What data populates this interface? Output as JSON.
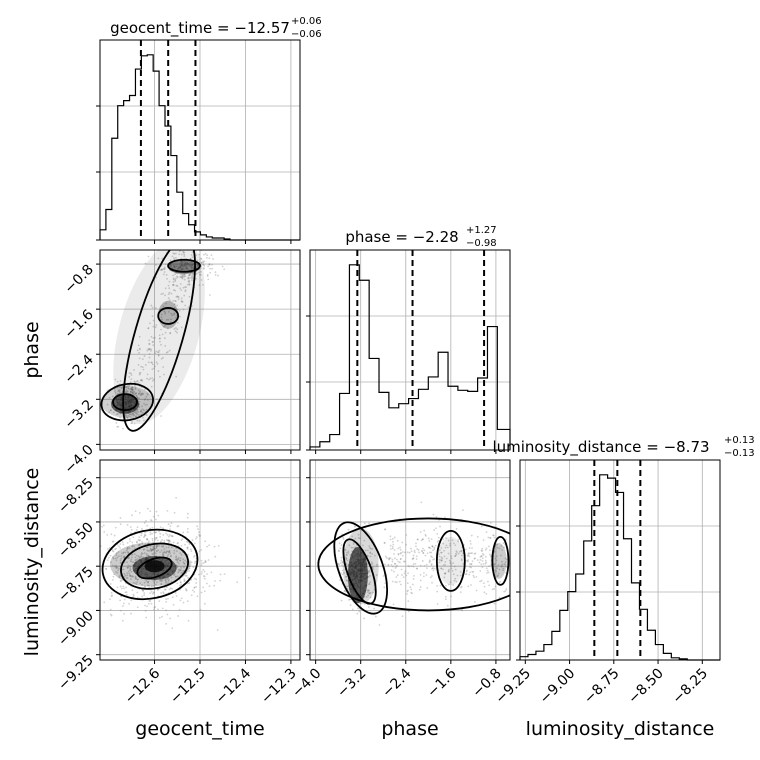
{
  "chart_data": {
    "type": "corner",
    "parameters": [
      "geocent_time",
      "phase",
      "luminosity_distance"
    ],
    "titles": [
      {
        "param": "geocent_time",
        "median": "−12.57",
        "plus": "+0.06",
        "minus": "−0.06"
      },
      {
        "param": "phase",
        "median": "−2.28",
        "plus": "+1.27",
        "minus": "−0.98"
      },
      {
        "param": "luminosity_distance",
        "median": "−8.73",
        "plus": "+0.13",
        "minus": "−0.13"
      }
    ],
    "title_equals": "=",
    "axes": {
      "geocent_time": {
        "range": [
          -12.72,
          -12.28
        ],
        "ticks": [
          -12.6,
          -12.5,
          -12.4,
          -12.3
        ],
        "tick_labels": [
          "−12.6",
          "−12.5",
          "−12.4",
          "−12.3"
        ]
      },
      "phase": {
        "range": [
          -4.1,
          -0.55
        ],
        "ticks": [
          -4.0,
          -3.2,
          -2.4,
          -1.6,
          -0.8
        ],
        "tick_labels": [
          "−4.0",
          "−3.2",
          "−2.4",
          "−1.6",
          "−0.8"
        ]
      },
      "luminosity_distance": {
        "range": [
          -9.28,
          -8.15
        ],
        "ticks": [
          -9.25,
          -9.0,
          -8.75,
          -8.5,
          -8.25
        ],
        "tick_labels": [
          "−9.25",
          "−9.00",
          "−8.75",
          "−8.50",
          "−8.25"
        ]
      }
    },
    "histograms": {
      "geocent_time": {
        "edges": [
          -12.72,
          -12.707,
          -12.694,
          -12.681,
          -12.668,
          -12.655,
          -12.642,
          -12.629,
          -12.616,
          -12.603,
          -12.59,
          -12.577,
          -12.564,
          -12.551,
          -12.538,
          -12.525,
          -12.512,
          -12.499,
          -12.486,
          -12.473,
          -12.46,
          -12.447,
          -12.434,
          -12.421,
          -12.408,
          -12.395,
          -12.382,
          -12.369,
          -12.356,
          -12.343,
          -12.33,
          -12.317,
          -12.304,
          -12.291,
          -12.28
        ],
        "counts": [
          10,
          30,
          100,
          132,
          137,
          142,
          168,
          181,
          182,
          166,
          132,
          112,
          83,
          47,
          26,
          15,
          8,
          5,
          3,
          2,
          2,
          1,
          0,
          0,
          0,
          0,
          0,
          0,
          0,
          0,
          0,
          0,
          0,
          0
        ]
      },
      "phase": {
        "edges": [
          -4.1,
          -3.925,
          -3.75,
          -3.575,
          -3.4,
          -3.225,
          -3.05,
          -2.875,
          -2.7,
          -2.525,
          -2.35,
          -2.175,
          -2.0,
          -1.825,
          -1.65,
          -1.475,
          -1.3,
          -1.125,
          -0.95,
          -0.775,
          -0.6,
          -0.55
        ],
        "counts": [
          3,
          8,
          15,
          55,
          180,
          165,
          89,
          56,
          41,
          45,
          50,
          59,
          71,
          95,
          62,
          58,
          57,
          70,
          120,
          20,
          20
        ]
      },
      "luminosity_distance": {
        "edges": [
          -9.28,
          -9.235,
          -9.19,
          -9.145,
          -9.1,
          -9.055,
          -9.01,
          -8.965,
          -8.92,
          -8.875,
          -8.83,
          -8.785,
          -8.74,
          -8.695,
          -8.65,
          -8.605,
          -8.56,
          -8.515,
          -8.47,
          -8.425,
          -8.38,
          -8.335,
          -8.29,
          -8.245,
          -8.2,
          -8.15
        ],
        "counts": [
          3,
          5,
          8,
          14,
          26,
          45,
          62,
          78,
          108,
          140,
          168,
          165,
          152,
          110,
          70,
          46,
          27,
          14,
          6,
          2,
          1,
          0,
          0,
          0,
          0
        ]
      }
    },
    "quantiles": {
      "geocent_time": [
        -12.63,
        -12.57,
        -12.51
      ],
      "phase": [
        -3.26,
        -2.28,
        -1.01
      ],
      "luminosity_distance": [
        -8.86,
        -8.73,
        -8.6
      ]
    },
    "grid": true,
    "scatter_color": "#7f7f7f",
    "contour_color": "#000000",
    "quantile_line_style": "dashed"
  }
}
